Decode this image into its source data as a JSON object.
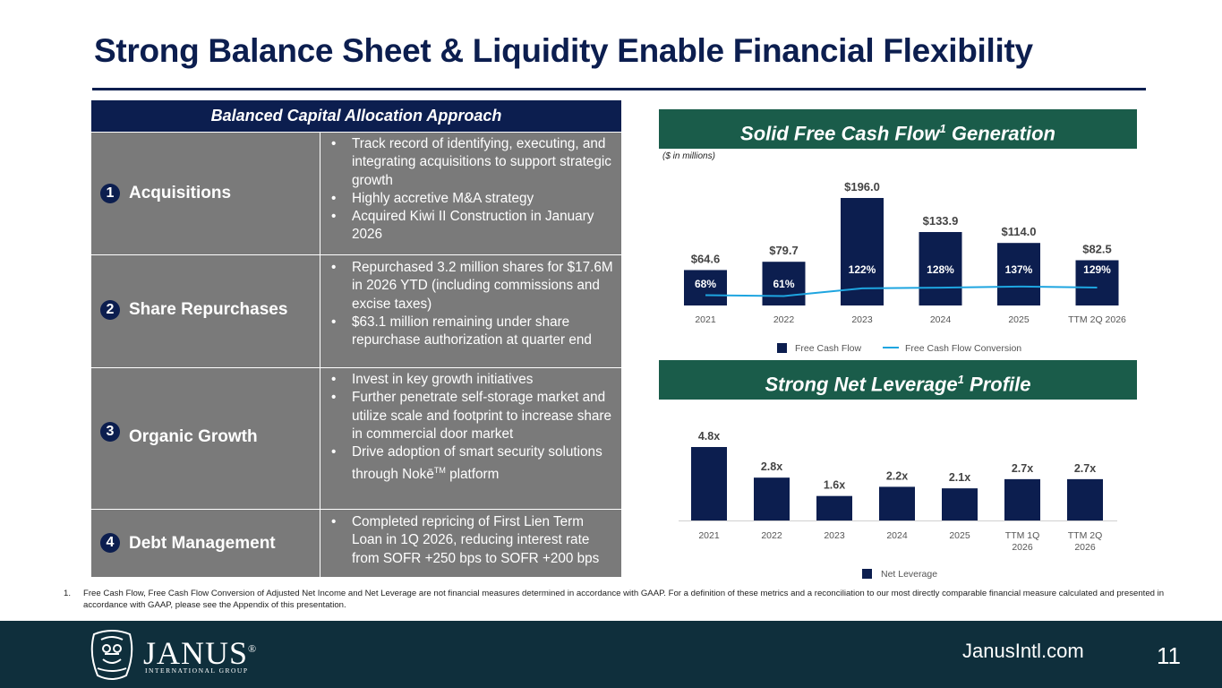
{
  "title": "Strong Balance Sheet & Liquidity Enable Financial Flexibility",
  "capital_allocation": {
    "header": "Balanced Capital Allocation Approach",
    "rows": [
      {
        "num": "1",
        "label": "Acquisitions",
        "bullets": [
          "Track record of identifying, executing, and integrating acquisitions to support strategic growth",
          "Highly accretive M&A strategy",
          "Acquired Kiwi II Construction in January 2026"
        ]
      },
      {
        "num": "2",
        "label": "Share Repurchases",
        "bullets": [
          "Repurchased 3.2 million shares for $17.6M in 2026 YTD (including commissions and excise taxes)",
          "$63.1 million remaining under share repurchase authorization at quarter end"
        ]
      },
      {
        "num": "3",
        "label": "Organic Growth",
        "bullets": [
          "Invest in key growth initiatives",
          "Further penetrate self-storage market and utilize scale and footprint to increase share in commercial door market",
          "Drive adoption of smart security solutions through Nokē",
          "TM",
          " platform"
        ]
      },
      {
        "num": "4",
        "label": "Debt Management",
        "bullets": [
          "Completed repricing of First Lien Term Loan in 1Q 2026, reducing interest rate from SOFR +250 bps to SOFR +200 bps"
        ]
      }
    ]
  },
  "fcf_panel": {
    "header": "Solid Free Cash Flow",
    "sup": "1",
    "header_suffix": " Generation",
    "units": "($ in millions)"
  },
  "leverage_panel": {
    "header": "Strong Net Leverage",
    "sup": "1",
    "header_suffix": " Profile"
  },
  "chart_data": [
    {
      "type": "bar",
      "title": "Solid Free Cash Flow1 Generation",
      "units": "($ in millions)",
      "categories": [
        "2021",
        "2022",
        "2023",
        "2024",
        "2025",
        "TTM 2Q 2026"
      ],
      "series": [
        {
          "name": "Free Cash Flow",
          "type": "bar",
          "values": [
            64.6,
            79.7,
            196.0,
            133.9,
            114.0,
            82.5
          ],
          "labels": [
            "$64.6",
            "$79.7",
            "$196.0",
            "$133.9",
            "$114.0",
            "$82.5"
          ],
          "color": "#0c1e4f"
        },
        {
          "name": "Free Cash Flow Conversion",
          "type": "line",
          "values": [
            68,
            61,
            122,
            128,
            137,
            129
          ],
          "labels": [
            "68%",
            "61%",
            "122%",
            "128%",
            "137%",
            "129%"
          ],
          "color": "#1ea5e0"
        }
      ],
      "legend": "bottom",
      "grid": false
    },
    {
      "type": "bar",
      "title": "Strong Net Leverage1 Profile",
      "categories": [
        "2021",
        "2022",
        "2023",
        "2024",
        "2025",
        "TTM 1Q 2026",
        "TTM 2Q 2026"
      ],
      "series": [
        {
          "name": "Net Leverage",
          "values": [
            4.8,
            2.8,
            1.6,
            2.2,
            2.1,
            2.7,
            2.7
          ],
          "labels": [
            "4.8x",
            "2.8x",
            "1.6x",
            "2.2x",
            "2.1x",
            "2.7x",
            "2.7x"
          ],
          "color": "#0c1e4f"
        }
      ],
      "legend": "bottom",
      "grid": false
    }
  ],
  "footnote": {
    "num": "1.",
    "text": "Free Cash Flow, Free Cash Flow Conversion of Adjusted Net Income and Net Leverage are not financial measures determined in accordance with GAAP. For a definition of these metrics and a reconciliation to our most directly comparable financial measure calculated and presented in accordance with GAAP, please see the Appendix of this presentation."
  },
  "footer": {
    "brand": "JANUS",
    "brand_trademark": "®",
    "brand_sub": "INTERNATIONAL GROUP",
    "url": "JanusIntl.com",
    "page": "11"
  },
  "colors": {
    "navy": "#0c1e4f",
    "green": "#1a5c4a",
    "gray_row": "#7a7a7a",
    "line_blue": "#1ea5e0",
    "footer": "#0f2f3c"
  }
}
